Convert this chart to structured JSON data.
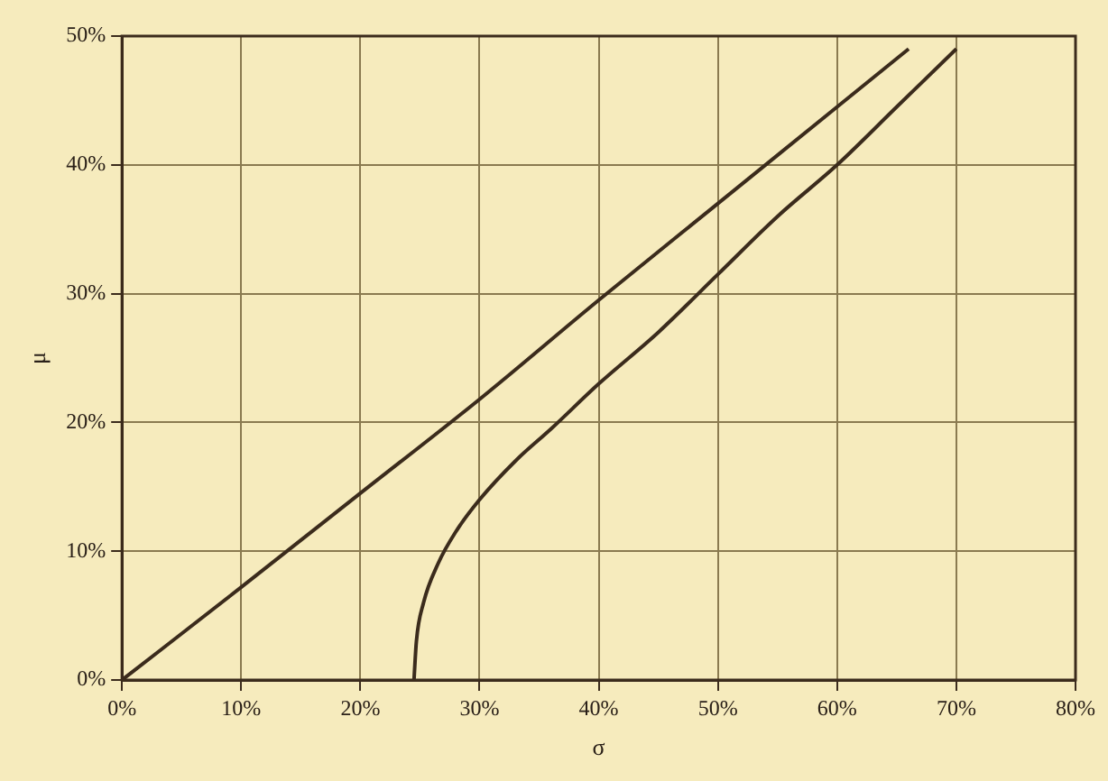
{
  "chart_data": {
    "type": "line",
    "xlabel": "σ",
    "ylabel": "μ",
    "xlim": [
      0,
      80
    ],
    "ylim": [
      0,
      50
    ],
    "xticks": [
      {
        "value": 0,
        "label": "0%"
      },
      {
        "value": 10,
        "label": "10%"
      },
      {
        "value": 20,
        "label": "20%"
      },
      {
        "value": 30,
        "label": "30%"
      },
      {
        "value": 40,
        "label": "40%"
      },
      {
        "value": 50,
        "label": "50%"
      },
      {
        "value": 60,
        "label": "60%"
      },
      {
        "value": 70,
        "label": "70%"
      },
      {
        "value": 80,
        "label": "80%"
      }
    ],
    "yticks": [
      {
        "value": 0,
        "label": "0%"
      },
      {
        "value": 10,
        "label": "10%"
      },
      {
        "value": 20,
        "label": "20%"
      },
      {
        "value": 30,
        "label": "30%"
      },
      {
        "value": 40,
        "label": "40%"
      },
      {
        "value": 50,
        "label": "50%"
      }
    ],
    "grid": true,
    "legend": false,
    "marker": "none",
    "line_style": "solid",
    "series": [
      {
        "color": "#3b2b1c",
        "x": [
          0,
          10,
          20,
          30,
          40,
          50,
          60,
          66
        ],
        "values": [
          0,
          7.2,
          14.5,
          21.8,
          29.5,
          37,
          44.5,
          49
        ]
      },
      {
        "color": "#3b2b1c",
        "x": [
          24.5,
          24.7,
          25.3,
          26.5,
          28,
          30,
          33,
          36,
          40,
          45,
          50,
          55,
          60,
          65,
          70
        ],
        "values": [
          0,
          3,
          6,
          9,
          11.5,
          14,
          17,
          19.5,
          23,
          27,
          31.5,
          36,
          40,
          44.5,
          49
        ]
      }
    ]
  }
}
